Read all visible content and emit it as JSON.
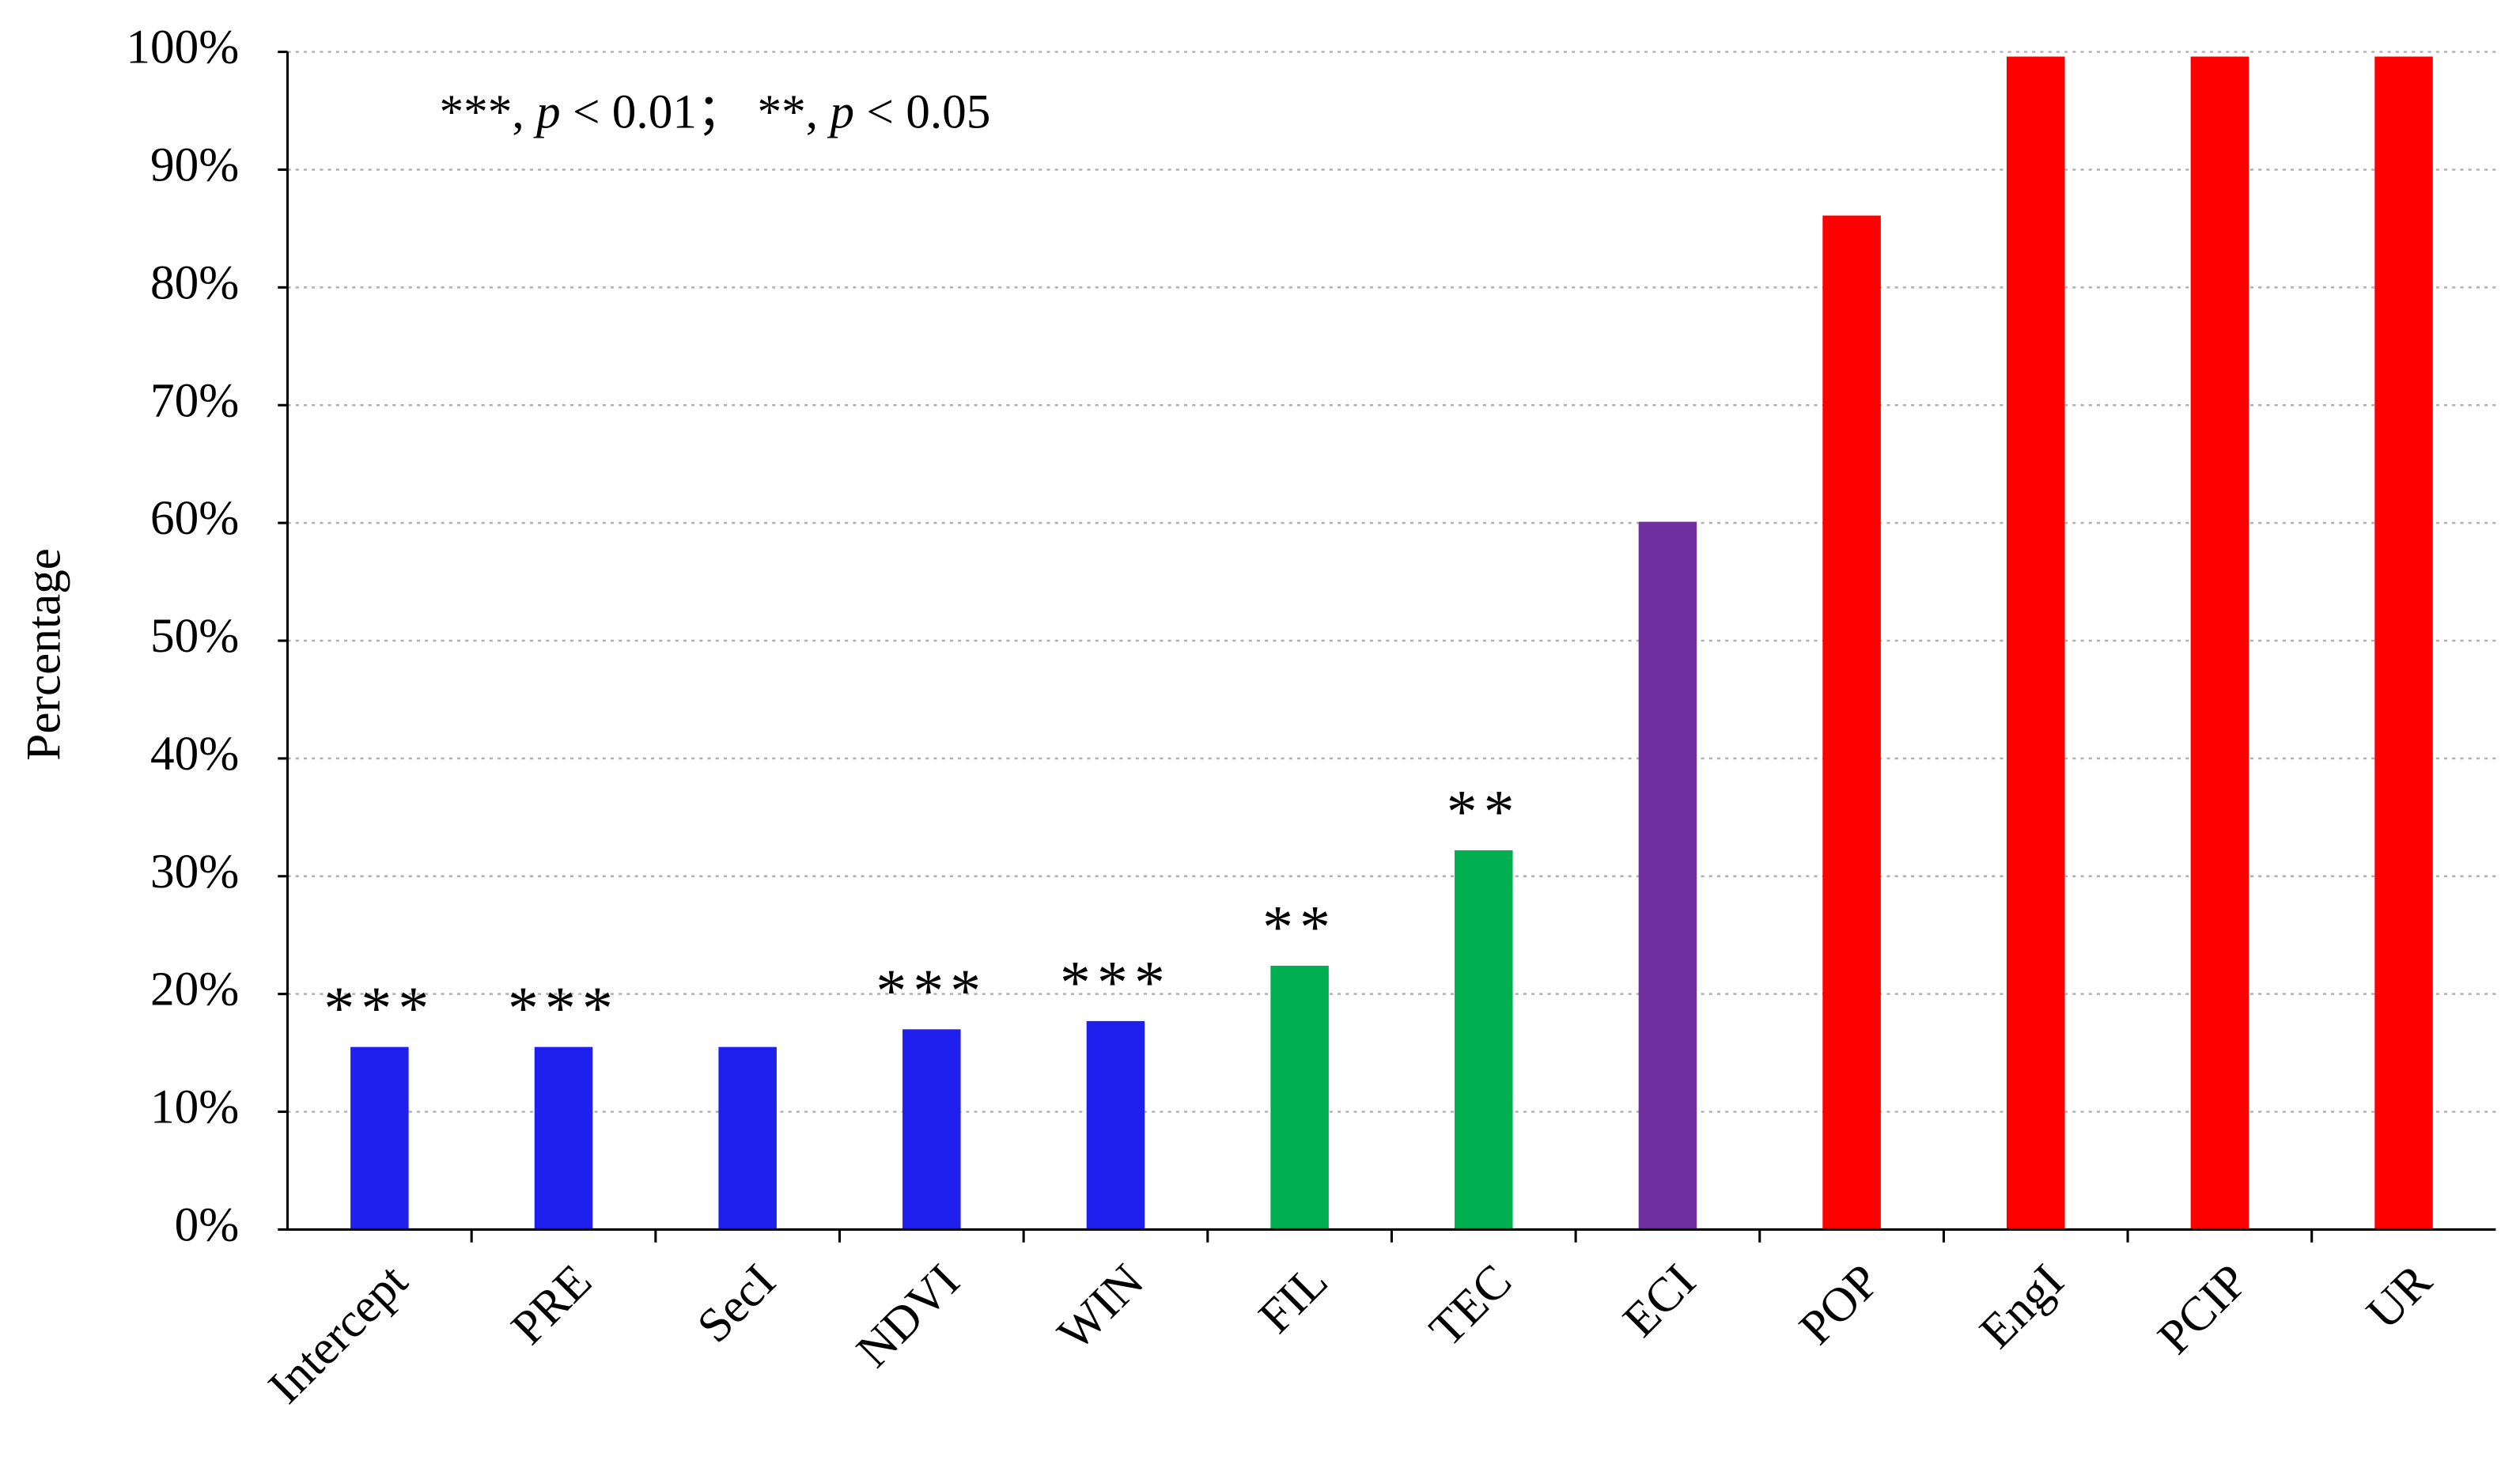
{
  "chart_data": {
    "type": "bar",
    "y_label": "Percentage",
    "annotation": [
      "***, ",
      "p",
      " < 0.01；  **, ",
      "p",
      " < 0.05"
    ],
    "categories": [
      "Intercept",
      "PRE",
      "SecI",
      "NDVI",
      "WIN",
      "FIL",
      "TEC",
      "ECI",
      "POP",
      "EngI",
      "PCIP",
      "UR"
    ],
    "values": [
      15.5,
      15.5,
      15.5,
      17,
      17.7,
      22.4,
      32.2,
      60.1,
      86.1,
      99.6,
      99.6,
      99.6
    ],
    "colors": [
      "#2020ee",
      "#2020ee",
      "#2020ee",
      "#2020ee",
      "#2020ee",
      "#00b050",
      "#00b050",
      "#7030a0",
      "#ff0000",
      "#ff0000",
      "#ff0000",
      "#ff0000"
    ],
    "significance": [
      "***",
      "***",
      null,
      "***",
      "***",
      "**",
      "**",
      null,
      null,
      null,
      null,
      null
    ],
    "ylim": [
      0,
      100
    ],
    "yticks": [
      {
        "value": 0,
        "label": "0%"
      },
      {
        "value": 10,
        "label": "10%"
      },
      {
        "value": 20,
        "label": "20%"
      },
      {
        "value": 30,
        "label": "30%"
      },
      {
        "value": 40,
        "label": "40%"
      },
      {
        "value": 50,
        "label": "50%"
      },
      {
        "value": 60,
        "label": "60%"
      },
      {
        "value": 70,
        "label": "70%"
      },
      {
        "value": 80,
        "label": "80%"
      },
      {
        "value": 90,
        "label": "90%"
      },
      {
        "value": 100,
        "label": "100%"
      }
    ],
    "grid": true
  }
}
